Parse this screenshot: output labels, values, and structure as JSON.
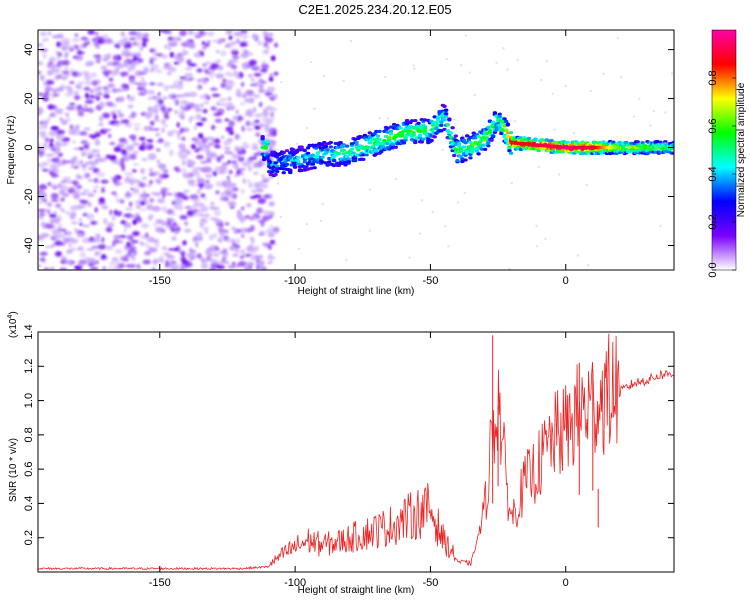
{
  "title": "C2E1.2025.234.20.12.E05",
  "chart_data": [
    {
      "type": "heatmap",
      "xlabel": "Height of straight line (km)",
      "ylabel": "Frequency (Hz)",
      "xlim": [
        -195,
        40
      ],
      "ylim": [
        -50,
        48
      ],
      "xticks": [
        -150,
        -100,
        -50,
        0
      ],
      "yticks": [
        -40,
        -20,
        0,
        20,
        40
      ],
      "grid": false,
      "colorbar": {
        "label": "Normalized spectral amplitude",
        "range": [
          0.0,
          1.0
        ],
        "ticks": [
          "0.0",
          "0.2",
          "0.4",
          "0.6",
          "0.8"
        ],
        "colors": [
          "#ffffff",
          "#7a00ff",
          "#0000ff",
          "#00ffff",
          "#00ff00",
          "#ffff00",
          "#ff0000",
          "#ff00aa"
        ]
      },
      "noise_region": {
        "x_range": [
          -195,
          -110
        ],
        "amplitude": 0.15
      },
      "ridge": [
        {
          "x": -110,
          "freq": -7,
          "amp": 0.25
        },
        {
          "x": -100,
          "freq": -5,
          "amp": 0.3
        },
        {
          "x": -90,
          "freq": -3,
          "amp": 0.35
        },
        {
          "x": -80,
          "freq": -2,
          "amp": 0.4
        },
        {
          "x": -70,
          "freq": 2,
          "amp": 0.45
        },
        {
          "x": -60,
          "freq": 6,
          "amp": 0.5
        },
        {
          "x": -50,
          "freq": 7,
          "amp": 0.45
        },
        {
          "x": -45,
          "freq": 13,
          "amp": 0.35
        },
        {
          "x": -40,
          "freq": -2,
          "amp": 0.45
        },
        {
          "x": -30,
          "freq": 3,
          "amp": 0.5
        },
        {
          "x": -25,
          "freq": 12,
          "amp": 0.4
        },
        {
          "x": -20,
          "freq": 2,
          "amp": 0.85
        },
        {
          "x": -10,
          "freq": 1,
          "amp": 0.9
        },
        {
          "x": 0,
          "freq": 0,
          "amp": 0.95
        },
        {
          "x": 10,
          "freq": 0,
          "amp": 0.9
        },
        {
          "x": 20,
          "freq": 0,
          "amp": 0.6
        },
        {
          "x": 40,
          "freq": 0,
          "amp": 0.45
        }
      ]
    },
    {
      "type": "line",
      "xlabel": "Height of straight line (km)",
      "ylabel": "SNR (10 * v/v)",
      "y_multiplier": "(x10",
      "y_exponent": "4",
      "y_multiplier_close": ")",
      "xlim": [
        -195,
        40
      ],
      "ylim": [
        0,
        1.4
      ],
      "xticks": [
        -150,
        -100,
        -50,
        0
      ],
      "yticks": [
        0.2,
        0.4,
        0.6,
        0.8,
        1.0,
        1.2,
        1.4
      ],
      "line_color": "#ee2222",
      "series": [
        {
          "x": [
            -195,
            -180,
            -160,
            -140,
            -120,
            -110,
            -105,
            -100,
            -95,
            -90,
            -85,
            -80,
            -75,
            -70,
            -65,
            -60,
            -55,
            -50,
            -45,
            -40,
            -35,
            -30,
            -27,
            -25,
            -22,
            -20,
            -15,
            -10,
            -5,
            0,
            5,
            10,
            15,
            20,
            25,
            30,
            35,
            40
          ],
          "y": [
            0.02,
            0.02,
            0.02,
            0.02,
            0.02,
            0.03,
            0.08,
            0.12,
            0.15,
            0.13,
            0.14,
            0.16,
            0.18,
            0.2,
            0.22,
            0.25,
            0.28,
            0.3,
            0.15,
            0.06,
            0.05,
            0.35,
            0.8,
            1.0,
            0.5,
            0.3,
            0.5,
            0.6,
            0.75,
            0.8,
            0.9,
            0.95,
            1.0,
            1.05,
            1.1,
            1.12,
            1.15,
            1.16
          ]
        }
      ],
      "peaks": [
        {
          "x": -27,
          "y": 1.38
        },
        {
          "x": -25,
          "y": 0.97
        },
        {
          "x": 5,
          "y": 1.22
        },
        {
          "x": 10,
          "y": 1.18
        },
        {
          "x": 12,
          "y": 0.26
        }
      ]
    }
  ]
}
